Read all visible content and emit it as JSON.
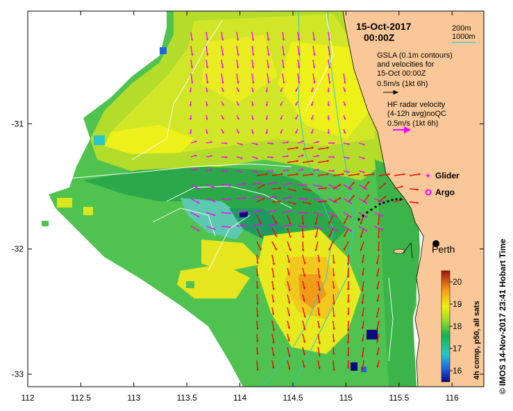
{
  "title": {
    "date": "15-Oct-2017",
    "time": "00:00Z"
  },
  "contour_legend": {
    "line1": "200m",
    "line2": "1000m",
    "line2_color": "#29c8d8"
  },
  "gsla": {
    "line1": "GSLA (0.1m contours)",
    "line2": "and velocities for",
    "line3": "15-Oct 00:00Z",
    "scale": "0.5m/s (1kt 6h)"
  },
  "hf_radar": {
    "line1": "HF radar velocity",
    "line2": "(4-12h avg)noQC",
    "scale": "0.5m/s (1kt 6h)",
    "color": "#ff00ff"
  },
  "legend": {
    "glider": "Glider",
    "argo": "Argo"
  },
  "city": {
    "name": "Perth",
    "lon": 115.86,
    "lat": -31.95
  },
  "credit": "©  IMOS 14-Nov-2017 23:41 Hobart Time",
  "colorbar": {
    "label": "4h comp, p50, all sats",
    "ticks": [
      "16",
      "17",
      "18",
      "19",
      "20"
    ],
    "range": [
      15.5,
      20.5
    ]
  },
  "axes": {
    "x_ticks": [
      "112",
      "112.5",
      "113",
      "113.5",
      "114",
      "114.5",
      "115",
      "115.5",
      "116"
    ],
    "y_ticks": [
      "-31",
      "-32",
      "-33"
    ],
    "xlim": [
      112,
      116.3
    ],
    "ylim": [
      -33.1,
      -30.1
    ]
  },
  "colors": {
    "land": "#fac898",
    "gsla_arrow": "#ff0000",
    "radar_arrow": "#ff00ff",
    "contour_white": "#ffffff"
  }
}
